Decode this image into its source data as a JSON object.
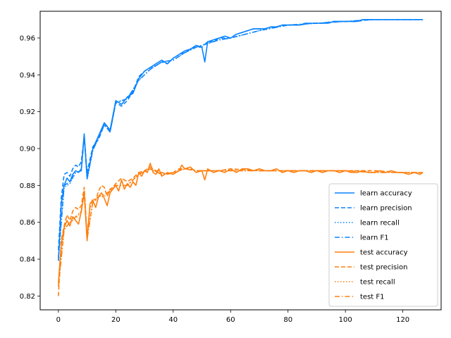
{
  "chart_data": {
    "type": "line",
    "title": "",
    "xlabel": "",
    "ylabel": "",
    "xlim": [
      -6.35,
      133.35
    ],
    "ylim": [
      0.8125,
      0.9745
    ],
    "xticks": [
      0,
      20,
      40,
      60,
      80,
      100,
      120
    ],
    "yticks": [
      0.82,
      0.84,
      0.86,
      0.88,
      0.9,
      0.92,
      0.94,
      0.96
    ],
    "grid": false,
    "legend_position": "lower-right",
    "colors": {
      "learn": "#1f77b4",
      "learn_bright": "#0a84ff",
      "test": "#ff7f0e"
    },
    "series": [
      {
        "name": "learn accuracy",
        "color": "#0a84ff",
        "style": "solid",
        "x": [
          0,
          1,
          2,
          3,
          4,
          5,
          6,
          7,
          8,
          9,
          10,
          12,
          14,
          16,
          18,
          20,
          22,
          24,
          26,
          28,
          30,
          32,
          34,
          36,
          38,
          40,
          42,
          44,
          46,
          48,
          50,
          51,
          52,
          54,
          56,
          58,
          60,
          62,
          64,
          66,
          68,
          70,
          72,
          74,
          76,
          78,
          80,
          82,
          84,
          86,
          88,
          90,
          92,
          94,
          96,
          98,
          100,
          102,
          104,
          106,
          108,
          110,
          112,
          114,
          116,
          118,
          120,
          122,
          124,
          126,
          127
        ],
        "values": [
          0.839,
          0.87,
          0.88,
          0.884,
          0.882,
          0.886,
          0.888,
          0.887,
          0.889,
          0.908,
          0.884,
          0.9,
          0.907,
          0.914,
          0.91,
          0.926,
          0.924,
          0.928,
          0.93,
          0.938,
          0.942,
          0.944,
          0.946,
          0.948,
          0.946,
          0.949,
          0.951,
          0.953,
          0.954,
          0.956,
          0.955,
          0.947,
          0.958,
          0.959,
          0.96,
          0.961,
          0.96,
          0.962,
          0.963,
          0.964,
          0.965,
          0.965,
          0.965,
          0.966,
          0.966,
          0.967,
          0.967,
          0.967,
          0.967,
          0.968,
          0.968,
          0.968,
          0.968,
          0.968,
          0.969,
          0.969,
          0.969,
          0.969,
          0.969,
          0.97,
          0.97,
          0.97,
          0.97,
          0.97,
          0.97,
          0.97,
          0.97,
          0.97,
          0.97,
          0.97,
          0.97
        ]
      },
      {
        "name": "learn precision",
        "color": "#0a84ff",
        "style": "dashed",
        "x": [
          0,
          1,
          2,
          3,
          4,
          5,
          6,
          7,
          8,
          9,
          10,
          12,
          14,
          16,
          18,
          20,
          22,
          24,
          26,
          28,
          30,
          32,
          34,
          36,
          38,
          40,
          42,
          44,
          46,
          48,
          50,
          52,
          54,
          56,
          58,
          60,
          62,
          64,
          66,
          68,
          70,
          72,
          74,
          76,
          78,
          80,
          84,
          88,
          92,
          96,
          100,
          104,
          108,
          112,
          116,
          120,
          124,
          127
        ],
        "values": [
          0.845,
          0.873,
          0.886,
          0.887,
          0.885,
          0.889,
          0.891,
          0.89,
          0.893,
          0.906,
          0.887,
          0.901,
          0.905,
          0.913,
          0.909,
          0.925,
          0.923,
          0.926,
          0.931,
          0.939,
          0.942,
          0.944,
          0.945,
          0.947,
          0.946,
          0.949,
          0.951,
          0.952,
          0.954,
          0.955,
          0.955,
          0.958,
          0.958,
          0.96,
          0.96,
          0.96,
          0.962,
          0.963,
          0.964,
          0.965,
          0.965,
          0.965,
          0.966,
          0.966,
          0.967,
          0.967,
          0.967,
          0.968,
          0.968,
          0.969,
          0.969,
          0.969,
          0.97,
          0.97,
          0.97,
          0.97,
          0.97,
          0.97
        ]
      },
      {
        "name": "learn recall",
        "color": "#0a84ff",
        "style": "dotted",
        "x": [
          0,
          2,
          4,
          6,
          8,
          9,
          10,
          12,
          14,
          16,
          18,
          20,
          24,
          28,
          32,
          36,
          40,
          44,
          48,
          52,
          56,
          60,
          70,
          80,
          90,
          100,
          110,
          120,
          127
        ],
        "values": [
          0.84,
          0.879,
          0.881,
          0.887,
          0.888,
          0.907,
          0.883,
          0.899,
          0.906,
          0.913,
          0.909,
          0.925,
          0.927,
          0.937,
          0.943,
          0.947,
          0.948,
          0.952,
          0.955,
          0.957,
          0.959,
          0.96,
          0.964,
          0.967,
          0.968,
          0.969,
          0.97,
          0.97,
          0.97
        ]
      },
      {
        "name": "learn F1",
        "color": "#0a84ff",
        "style": "dashdot",
        "x": [
          0,
          2,
          4,
          6,
          8,
          9,
          10,
          12,
          14,
          16,
          18,
          20,
          24,
          28,
          32,
          36,
          40,
          44,
          48,
          52,
          56,
          60,
          70,
          80,
          90,
          100,
          110,
          120,
          127
        ],
        "values": [
          0.841,
          0.88,
          0.882,
          0.887,
          0.888,
          0.907,
          0.884,
          0.899,
          0.906,
          0.913,
          0.909,
          0.925,
          0.927,
          0.937,
          0.943,
          0.947,
          0.948,
          0.952,
          0.955,
          0.957,
          0.959,
          0.96,
          0.964,
          0.967,
          0.968,
          0.969,
          0.97,
          0.97,
          0.97
        ]
      },
      {
        "name": "test accuracy",
        "color": "#ff7f0e",
        "style": "solid",
        "x": [
          0,
          1,
          2,
          3,
          4,
          5,
          6,
          7,
          8,
          9,
          10,
          11,
          12,
          13,
          14,
          15,
          16,
          17,
          18,
          19,
          20,
          21,
          22,
          23,
          24,
          25,
          26,
          27,
          28,
          29,
          30,
          31,
          32,
          33,
          34,
          35,
          36,
          38,
          40,
          42,
          43,
          44,
          46,
          48,
          50,
          51,
          52,
          54,
          56,
          58,
          60,
          62,
          64,
          66,
          68,
          70,
          72,
          74,
          76,
          78,
          80,
          82,
          84,
          86,
          88,
          90,
          92,
          94,
          96,
          98,
          100,
          102,
          104,
          106,
          108,
          110,
          112,
          114,
          116,
          118,
          120,
          122,
          124,
          126,
          127
        ],
        "values": [
          0.827,
          0.848,
          0.857,
          0.861,
          0.858,
          0.863,
          0.861,
          0.859,
          0.866,
          0.876,
          0.85,
          0.87,
          0.872,
          0.868,
          0.874,
          0.876,
          0.873,
          0.869,
          0.876,
          0.878,
          0.88,
          0.877,
          0.883,
          0.878,
          0.881,
          0.879,
          0.882,
          0.88,
          0.887,
          0.885,
          0.888,
          0.887,
          0.892,
          0.887,
          0.886,
          0.889,
          0.885,
          0.887,
          0.886,
          0.888,
          0.891,
          0.889,
          0.89,
          0.887,
          0.888,
          0.883,
          0.889,
          0.887,
          0.888,
          0.887,
          0.889,
          0.887,
          0.889,
          0.889,
          0.888,
          0.889,
          0.888,
          0.888,
          0.889,
          0.887,
          0.888,
          0.887,
          0.888,
          0.888,
          0.887,
          0.888,
          0.887,
          0.888,
          0.888,
          0.887,
          0.888,
          0.887,
          0.887,
          0.888,
          0.887,
          0.887,
          0.888,
          0.887,
          0.888,
          0.887,
          0.887,
          0.886,
          0.887,
          0.886,
          0.887
        ]
      },
      {
        "name": "test precision",
        "color": "#ff7f0e",
        "style": "dashed",
        "x": [
          0,
          1,
          2,
          3,
          4,
          5,
          6,
          7,
          8,
          9,
          10,
          11,
          12,
          13,
          14,
          15,
          16,
          17,
          18,
          19,
          20,
          22,
          24,
          26,
          28,
          30,
          32,
          34,
          36,
          38,
          40,
          42,
          44,
          46,
          48,
          50,
          52,
          56,
          60,
          70,
          80,
          90,
          100,
          110,
          120,
          127
        ],
        "values": [
          0.82,
          0.85,
          0.858,
          0.864,
          0.861,
          0.866,
          0.868,
          0.867,
          0.869,
          0.879,
          0.853,
          0.868,
          0.873,
          0.872,
          0.877,
          0.88,
          0.879,
          0.874,
          0.878,
          0.879,
          0.881,
          0.884,
          0.882,
          0.884,
          0.887,
          0.888,
          0.89,
          0.888,
          0.887,
          0.886,
          0.887,
          0.889,
          0.889,
          0.889,
          0.888,
          0.888,
          0.888,
          0.888,
          0.889,
          0.888,
          0.888,
          0.888,
          0.888,
          0.888,
          0.887,
          0.887
        ]
      },
      {
        "name": "test recall",
        "color": "#ff7f0e",
        "style": "dotted",
        "x": [
          0,
          2,
          4,
          6,
          8,
          9,
          10,
          12,
          14,
          16,
          18,
          20,
          24,
          28,
          32,
          36,
          40,
          44,
          48,
          52,
          56,
          60,
          70,
          80,
          90,
          100,
          110,
          120,
          127
        ],
        "values": [
          0.826,
          0.856,
          0.86,
          0.862,
          0.866,
          0.876,
          0.851,
          0.871,
          0.874,
          0.874,
          0.877,
          0.88,
          0.88,
          0.886,
          0.889,
          0.886,
          0.887,
          0.889,
          0.888,
          0.888,
          0.888,
          0.888,
          0.888,
          0.888,
          0.888,
          0.888,
          0.887,
          0.887,
          0.887
        ]
      },
      {
        "name": "test F1",
        "color": "#ff7f0e",
        "style": "dashdot",
        "x": [
          0,
          2,
          4,
          6,
          8,
          9,
          10,
          12,
          14,
          16,
          18,
          20,
          24,
          28,
          32,
          36,
          40,
          44,
          48,
          52,
          56,
          60,
          70,
          80,
          90,
          100,
          110,
          120,
          127
        ],
        "values": [
          0.825,
          0.856,
          0.86,
          0.863,
          0.866,
          0.877,
          0.851,
          0.871,
          0.874,
          0.875,
          0.877,
          0.88,
          0.88,
          0.886,
          0.889,
          0.886,
          0.887,
          0.889,
          0.888,
          0.888,
          0.888,
          0.888,
          0.888,
          0.888,
          0.888,
          0.888,
          0.887,
          0.887,
          0.887
        ]
      }
    ]
  }
}
